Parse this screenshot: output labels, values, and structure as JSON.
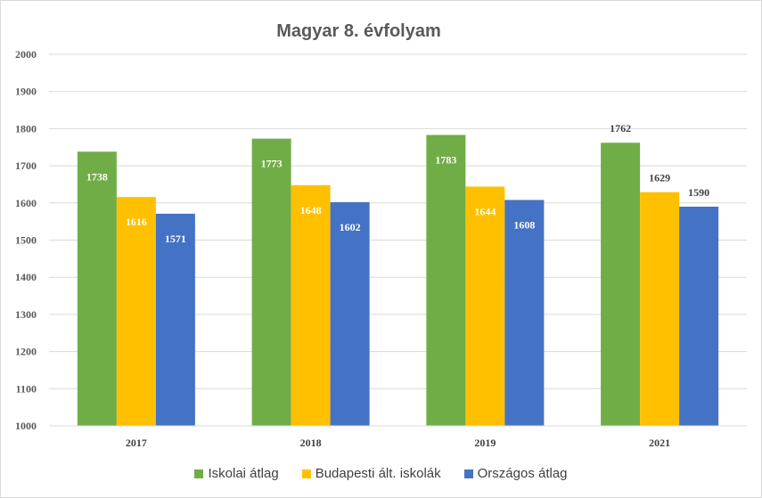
{
  "chart_data": {
    "type": "bar",
    "title": "Magyar 8. évfolyam",
    "categories": [
      "2017",
      "2018",
      "2019",
      "2021"
    ],
    "series": [
      {
        "name": "Iskolai átlag",
        "color": "#70ad47",
        "values": [
          1738,
          1773,
          1783,
          1762
        ]
      },
      {
        "name": "Budapesti ált. iskolák",
        "color": "#ffc000",
        "values": [
          1616,
          1648,
          1644,
          1629
        ]
      },
      {
        "name": "Országos átlag",
        "color": "#4472c4",
        "values": [
          1571,
          1602,
          1608,
          1590
        ]
      }
    ],
    "ylim": [
      1000,
      2000
    ],
    "yticks": [
      1000,
      1100,
      1200,
      1300,
      1400,
      1500,
      1600,
      1700,
      1800,
      1900,
      2000
    ],
    "grid": true,
    "legend_position": "bottom"
  }
}
